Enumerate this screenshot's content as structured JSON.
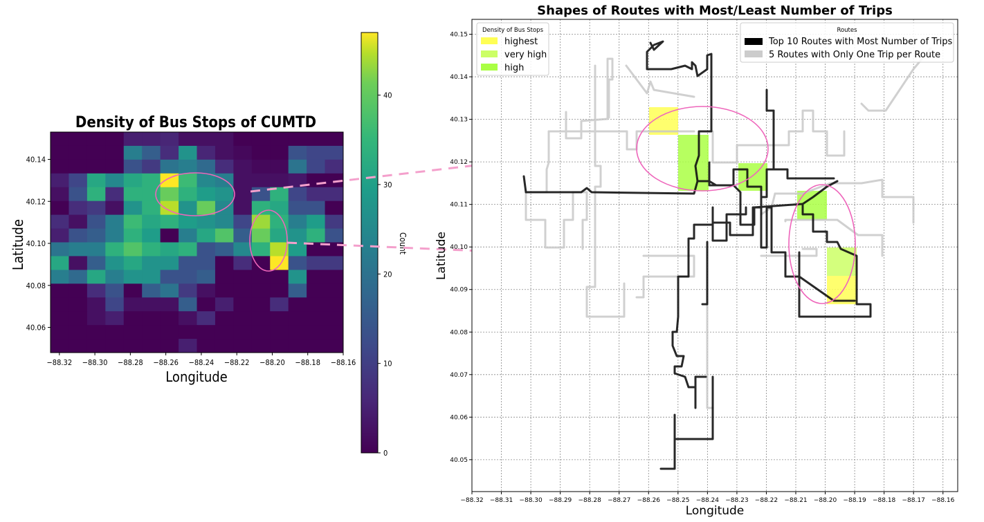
{
  "heatmap": {
    "title": "Density of Bus Stops of CUMTD",
    "xlabel": "Longitude",
    "ylabel": "Latitude",
    "colorbar_label": "Count",
    "x_ticks": [
      "−88.32",
      "−88.30",
      "−88.28",
      "−88.26",
      "−88.24",
      "−88.22",
      "−88.20",
      "−88.18",
      "−88.16"
    ],
    "y_ticks": [
      "40.14",
      "40.12",
      "40.10",
      "40.08",
      "40.06"
    ],
    "colorbar_ticks": [
      "0",
      "10",
      "20",
      "30",
      "40"
    ]
  },
  "routes": {
    "title": "Shapes of Routes with Most/Least Number of Trips",
    "xlabel": "Longitude",
    "ylabel": "Latitude",
    "x_ticks": [
      "−88.32",
      "−88.31",
      "−88.30",
      "−88.29",
      "−88.28",
      "−88.27",
      "−88.26",
      "−88.25",
      "−88.24",
      "−88.23",
      "−88.22",
      "−88.21",
      "−88.20",
      "−88.19",
      "−88.18",
      "−88.17",
      "−88.16"
    ],
    "y_ticks": [
      "40.15",
      "40.14",
      "40.13",
      "40.12",
      "40.11",
      "40.10",
      "40.09",
      "40.08",
      "40.07",
      "40.06",
      "40.05"
    ],
    "legend_density": {
      "title": "Density of Bus Stops",
      "items": [
        {
          "label": "highest",
          "color": "#ffff55"
        },
        {
          "label": "very high",
          "color": "#ccff66"
        },
        {
          "label": "high",
          "color": "#aaff44"
        }
      ]
    },
    "legend_routes": {
      "title": "Routes",
      "items": [
        {
          "label": "Top 10 Routes with Most Number of Trips",
          "color": "#000000"
        },
        {
          "label": "5 Routes with Only One Trip per Route",
          "color": "#cccccc"
        }
      ]
    }
  },
  "chart_data": [
    {
      "type": "heatmap",
      "title": "Density of Bus Stops of CUMTD",
      "xlabel": "Longitude",
      "ylabel": "Latitude",
      "xlim": [
        -88.325,
        -88.16
      ],
      "ylim": [
        40.048,
        40.153
      ],
      "colorbar": {
        "label": "Count",
        "range": [
          0,
          47
        ],
        "colormap": "viridis"
      },
      "columns": 16,
      "rows": 16,
      "cell_values_top_to_bottom": [
        [
          0,
          0,
          0,
          0,
          4,
          4,
          5,
          2,
          2,
          2,
          0,
          0,
          0,
          0,
          0,
          0
        ],
        [
          0,
          0,
          0,
          0,
          20,
          14,
          6,
          24,
          5,
          2,
          1,
          0,
          0,
          12,
          10,
          10
        ],
        [
          0,
          0,
          0,
          0,
          12,
          8,
          18,
          20,
          16,
          6,
          2,
          1,
          1,
          18,
          10,
          6
        ],
        [
          4,
          10,
          28,
          22,
          28,
          30,
          47,
          32,
          22,
          20,
          2,
          2,
          2,
          3,
          0,
          0
        ],
        [
          2,
          12,
          30,
          6,
          30,
          30,
          36,
          30,
          26,
          24,
          2,
          12,
          30,
          10,
          6,
          6
        ],
        [
          0,
          6,
          8,
          2,
          24,
          30,
          42,
          24,
          36,
          22,
          2,
          30,
          28,
          12,
          12,
          0
        ],
        [
          6,
          2,
          12,
          20,
          32,
          28,
          30,
          26,
          24,
          22,
          10,
          40,
          30,
          20,
          26,
          8
        ],
        [
          4,
          12,
          14,
          20,
          30,
          26,
          0,
          20,
          28,
          34,
          14,
          36,
          28,
          24,
          30,
          12
        ],
        [
          18,
          20,
          20,
          30,
          34,
          30,
          28,
          30,
          12,
          14,
          22,
          30,
          42,
          26,
          0,
          0
        ],
        [
          28,
          2,
          14,
          24,
          28,
          24,
          24,
          12,
          12,
          0,
          6,
          0,
          47,
          12,
          8,
          8
        ],
        [
          20,
          16,
          28,
          20,
          24,
          24,
          12,
          12,
          14,
          0,
          0,
          0,
          0,
          24,
          0,
          0
        ],
        [
          0,
          0,
          6,
          12,
          0,
          14,
          18,
          8,
          2,
          0,
          0,
          0,
          0,
          14,
          0,
          0
        ],
        [
          0,
          0,
          2,
          10,
          2,
          2,
          2,
          14,
          0,
          4,
          0,
          0,
          6,
          0,
          0,
          0
        ],
        [
          0,
          0,
          2,
          4,
          0,
          0,
          0,
          2,
          6,
          0,
          0,
          0,
          0,
          0,
          0,
          0
        ],
        [
          0,
          0,
          0,
          0,
          0,
          0,
          0,
          0,
          0,
          0,
          0,
          0,
          0,
          0,
          0,
          0
        ],
        [
          0,
          0,
          0,
          0,
          0,
          0,
          0,
          4,
          0,
          0,
          0,
          0,
          0,
          0,
          0,
          0
        ]
      ]
    },
    {
      "type": "line",
      "title": "Shapes of Routes with Most/Least Number of Trips",
      "xlabel": "Longitude",
      "ylabel": "Latitude",
      "xlim": [
        -88.32,
        -88.155
      ],
      "ylim": [
        40.0425,
        40.1535
      ],
      "grid": true,
      "highlight_cells": [
        {
          "lon": [
            -88.26,
            -88.25
          ],
          "lat": [
            40.127,
            40.1335
          ],
          "level": "highest"
        },
        {
          "lon": [
            -88.25,
            -88.24
          ],
          "lat": [
            40.1135,
            40.127
          ],
          "level": "high"
        },
        {
          "lon": [
            -88.23,
            -88.22
          ],
          "lat": [
            40.1135,
            40.12
          ],
          "level": "high"
        },
        {
          "lon": [
            -88.21,
            -88.2
          ],
          "lat": [
            40.1065,
            40.1135
          ],
          "level": "high"
        },
        {
          "lon": [
            -88.2,
            -88.19
          ],
          "lat": [
            40.093,
            40.1
          ],
          "level": "very high"
        },
        {
          "lon": [
            -88.2,
            -88.19
          ],
          "lat": [
            40.0865,
            40.093
          ],
          "level": "highest"
        }
      ],
      "series": [
        {
          "name": "Top 10 Routes with Most Number of Trips",
          "color": "#000000"
        },
        {
          "name": "5 Routes with Only One Trip per Route",
          "color": "#cccccc"
        }
      ]
    }
  ]
}
